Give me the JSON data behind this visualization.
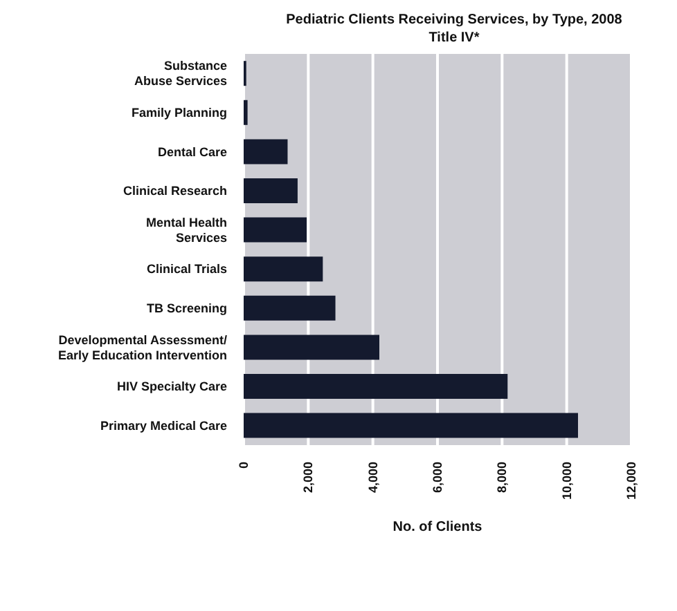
{
  "chart_data": {
    "type": "bar",
    "orientation": "horizontal",
    "title": "Pediatric Clients Receiving Services, by Type, 2008",
    "subtitle": "Title IV*",
    "xlabel": "No. of Clients",
    "categories": [
      "Substance\nAbuse Services",
      "Family Planning",
      "Dental Care",
      "Clinical Research",
      "Mental Health\nServices",
      "Clinical Trials",
      "TB Screening",
      "Developmental Assessment/\nEarly Education Intervention",
      "HIV Specialty Care",
      "Primary Medical Care"
    ],
    "values": [
      80,
      120,
      1360,
      1670,
      1950,
      2450,
      2840,
      4200,
      8170,
      10350
    ],
    "color": "#141a2e",
    "xlim": [
      0,
      12000
    ],
    "xticks": [
      0,
      {
        "value": 2000,
        "label": "2,000"
      },
      {
        "value": 4000,
        "label": "4,000"
      },
      {
        "value": 6000,
        "label": "6,000"
      },
      {
        "value": 8000,
        "label": "8,000"
      },
      {
        "value": 10000,
        "label": "10,000"
      },
      {
        "value": 12000,
        "label": "12,000"
      }
    ],
    "grid": "x"
  }
}
